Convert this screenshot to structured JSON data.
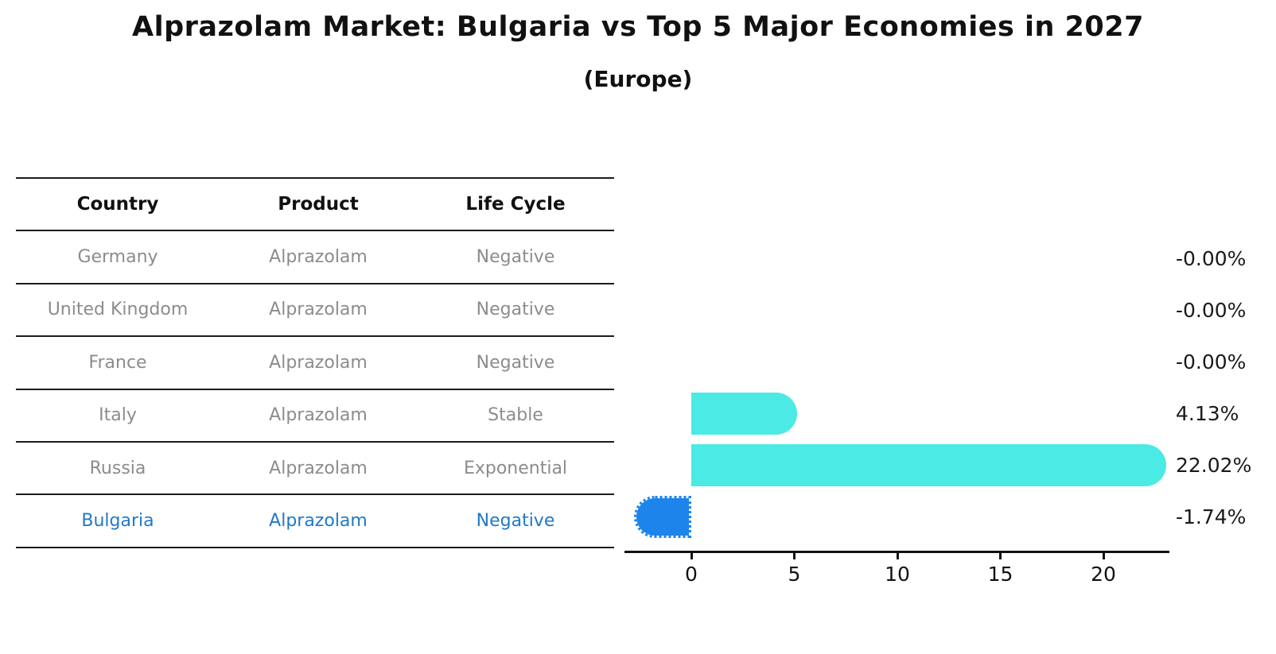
{
  "title": "Alprazolam Market: Bulgaria vs Top 5 Major Economies in 2027",
  "subtitle": "(Europe)",
  "table": {
    "headers": {
      "country": "Country",
      "product": "Product",
      "life_cycle": "Life Cycle"
    },
    "rows": [
      {
        "country": "Germany",
        "product": "Alprazolam",
        "life_cycle": "Negative"
      },
      {
        "country": "United Kingdom",
        "product": "Alprazolam",
        "life_cycle": "Negative"
      },
      {
        "country": "France",
        "product": "Alprazolam",
        "life_cycle": "Negative"
      },
      {
        "country": "Italy",
        "product": "Alprazolam",
        "life_cycle": "Stable"
      },
      {
        "country": "Russia",
        "product": "Alprazolam",
        "life_cycle": "Exponential"
      },
      {
        "country": "Bulgaria",
        "product": "Alprazolam",
        "life_cycle": "Negative"
      }
    ]
  },
  "chart_data": {
    "type": "bar",
    "orientation": "horizontal",
    "title": "Alprazolam Market: Bulgaria vs Top 5 Major Economies in 2027",
    "subtitle": "(Europe)",
    "categories": [
      "Germany",
      "United Kingdom",
      "France",
      "Italy",
      "Russia",
      "Bulgaria"
    ],
    "values": [
      -0.0,
      -0.0,
      -0.0,
      4.13,
      22.02,
      -1.74
    ],
    "value_labels": [
      "-0.00%",
      "-0.00%",
      "-0.00%",
      "4.13%",
      "22.02%",
      "-1.74%"
    ],
    "xticks": [
      0,
      5,
      10,
      15,
      20
    ],
    "xtick_labels": [
      "0",
      "5",
      "10",
      "15",
      "20"
    ],
    "xlim": [
      -3.2,
      23.2
    ],
    "grid": false,
    "legend": "none",
    "bar_colors": [
      "#4beae4",
      "#4beae4",
      "#4beae4",
      "#4beae4",
      "#4beae4",
      "#1d84ec"
    ],
    "highlight_category": "Bulgaria",
    "highlight_bar_style": "dotted-border",
    "bar_cap_style": "round"
  },
  "colors": {
    "bar_positive": "#4beae4",
    "bar_highlight": "#1d84ec",
    "highlight_text": "#2079c7",
    "table_text": "#8c8c8c",
    "axis": "#111111",
    "background": "#ffffff"
  }
}
